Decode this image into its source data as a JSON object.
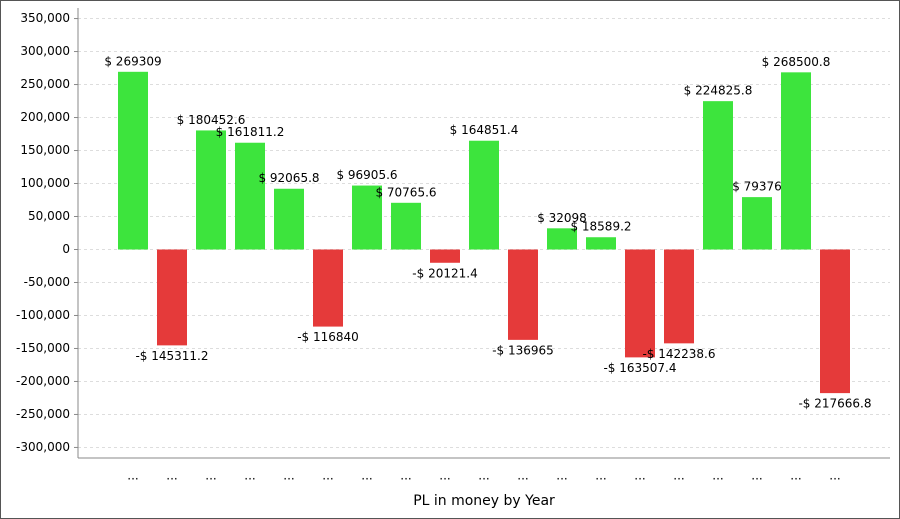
{
  "chart_data": {
    "type": "bar",
    "x_label": "PL in money by Year",
    "categories": [
      "...",
      "...",
      "...",
      "...",
      "...",
      "...",
      "...",
      "...",
      "...",
      "...",
      "...",
      "...",
      "...",
      "...",
      "...",
      "...",
      "...",
      "...",
      "..."
    ],
    "values": [
      269309,
      -145311.2,
      180452.6,
      161811.2,
      92065.8,
      -116840,
      96905.6,
      70765.6,
      -20121.4,
      164851.4,
      -136965,
      32098,
      18589.2,
      -163507.4,
      -142238.6,
      224825.8,
      79376,
      268500.8,
      -217666.8
    ],
    "value_labels": [
      "$ 269309",
      "-$ 145311.2",
      "$ 180452.6",
      "$ 161811.2",
      "$ 92065.8",
      "-$ 116840",
      "$ 96905.6",
      "$ 70765.6",
      "-$ 20121.4",
      "$ 164851.4",
      "-$ 136965",
      "$ 32098",
      "$ 18589.2",
      "-$ 163507.4",
      "-$ 142238.6",
      "$ 224825.8",
      "$ 79376",
      "$ 268500.8",
      "-$ 217666.8"
    ],
    "positive_color": "#3de43d",
    "negative_color": "#e53a3a",
    "ylim": [
      -316000,
      366000
    ],
    "yticks": [
      {
        "value": -300000,
        "label": "-300,000"
      },
      {
        "value": -250000,
        "label": "-250,000"
      },
      {
        "value": -200000,
        "label": "-200,000"
      },
      {
        "value": -150000,
        "label": "-150,000"
      },
      {
        "value": -100000,
        "label": "-100,000"
      },
      {
        "value": -50000,
        "label": "-50,000"
      },
      0,
      {
        "value": 50000,
        "label": "50,000"
      },
      {
        "value": 100000,
        "label": "100,000"
      },
      {
        "value": 150000,
        "label": "150,000"
      },
      {
        "value": 200000,
        "label": "200,000"
      },
      {
        "value": 250000,
        "label": "250,000"
      },
      {
        "value": 300000,
        "label": "300,000"
      },
      {
        "value": 350000,
        "label": "350,000"
      }
    ],
    "grid": true
  }
}
